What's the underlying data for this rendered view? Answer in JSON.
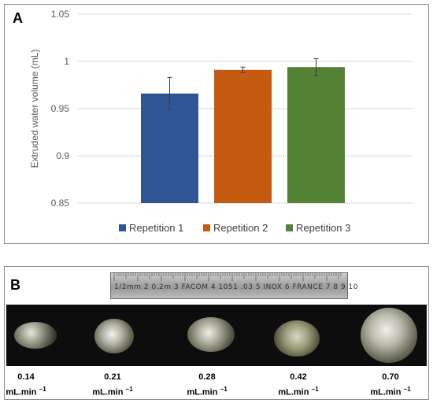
{
  "panel_a": {
    "letter": "A",
    "chart_data": {
      "type": "bar",
      "categories": [
        "Repetition 1",
        "Repetition 2",
        "Repetition 3"
      ],
      "values": [
        0.966,
        0.991,
        0.994
      ],
      "errors": [
        0.017,
        0.003,
        0.009
      ],
      "colors": [
        "#2f5597",
        "#c55a11",
        "#548235"
      ],
      "title": "",
      "xlabel": "",
      "ylabel": "Extruded water volume (mL)",
      "ylim": [
        0.85,
        1.05
      ],
      "yticks": [
        "0.85",
        "0.9",
        "0.95",
        "1",
        "1.05"
      ],
      "grid": true,
      "legend": "bottom",
      "legend_entries": [
        "Repetition 1",
        "Repetition 2",
        "Repetition 3"
      ]
    }
  },
  "panel_b": {
    "letter": "B",
    "ruler_marks": "1/2mm  2 0.2m 3 FACOM 4 1051 .03  5 INOX 6 FRANCE 7  8   9   10",
    "samples": [
      {
        "rate": "0.14",
        "unit": "mL.min",
        "exp": "−1"
      },
      {
        "rate": "0.21",
        "unit": "mL.min",
        "exp": "−1"
      },
      {
        "rate": "0.28",
        "unit": "mL.min",
        "exp": "−1"
      },
      {
        "rate": "0.42",
        "unit": "mL.min",
        "exp": "−1"
      },
      {
        "rate": "0.70",
        "unit": "mL.min",
        "exp": "−1"
      }
    ]
  }
}
